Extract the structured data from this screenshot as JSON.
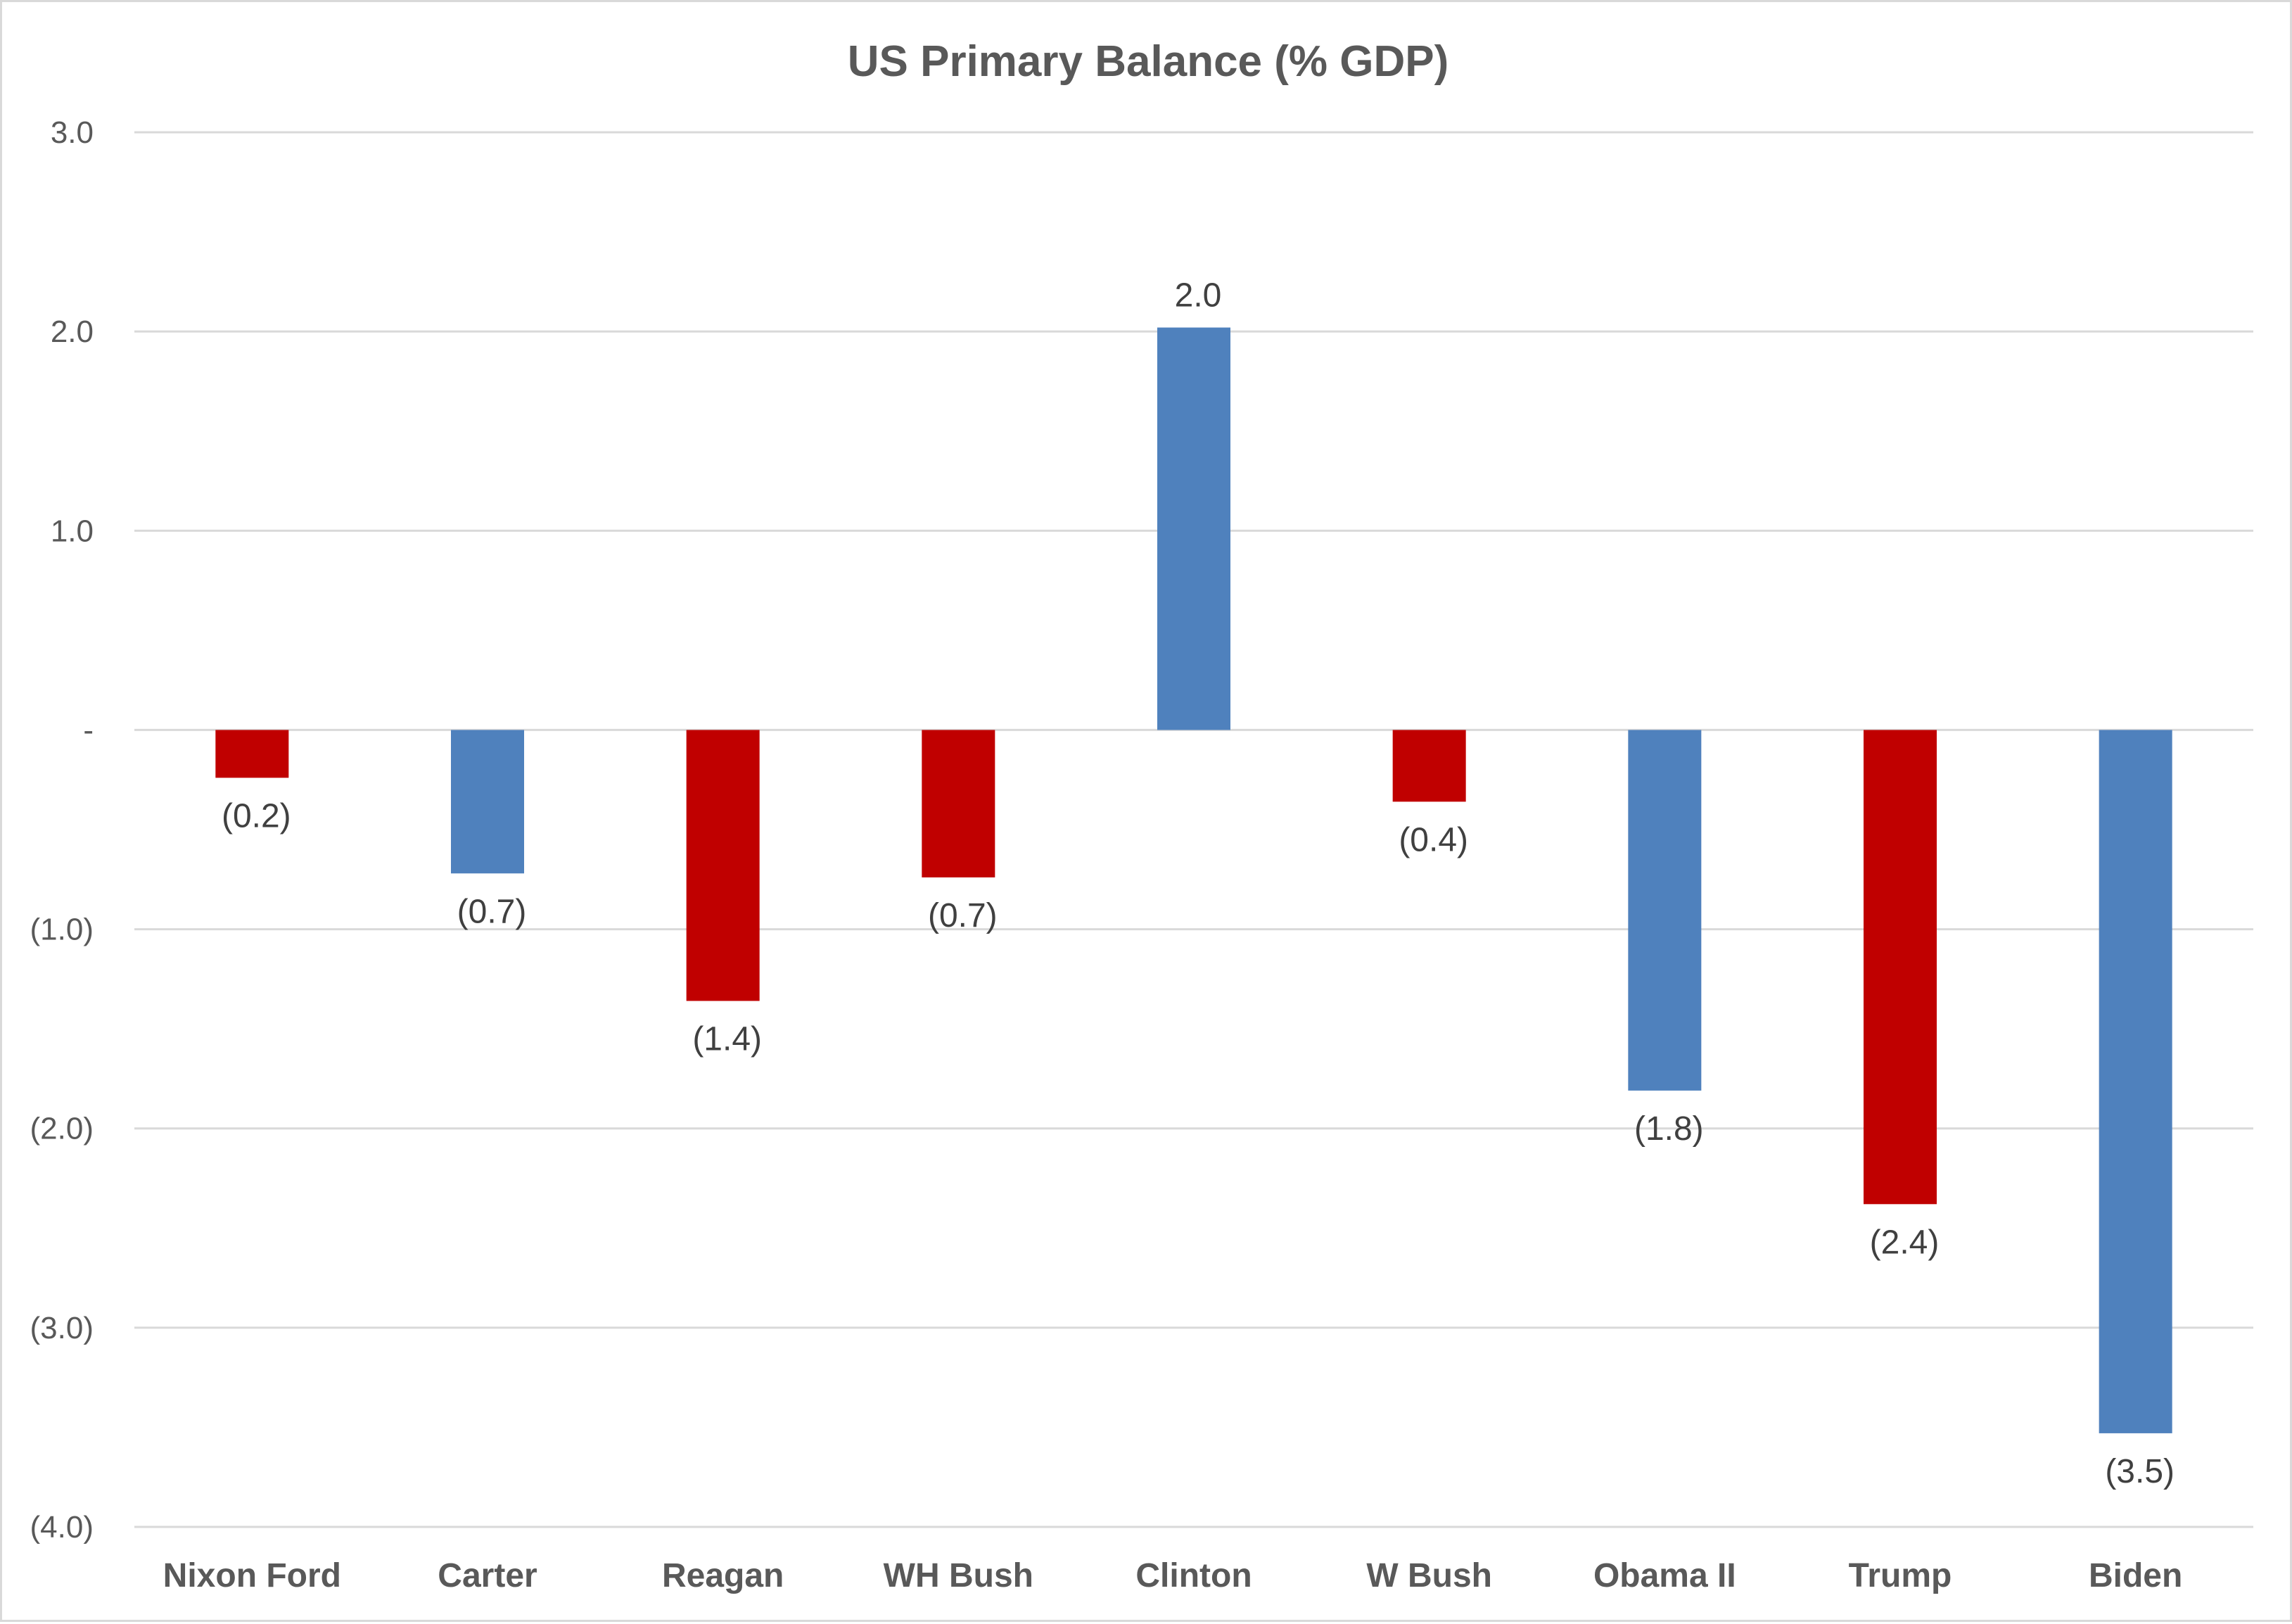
{
  "chart_data": {
    "type": "bar",
    "title": "US Primary Balance (% GDP)",
    "xlabel": "",
    "ylabel": "",
    "ylim": [
      -4.0,
      3.0
    ],
    "yticks": [
      3.0,
      2.0,
      1.0,
      0.0,
      -1.0,
      -2.0,
      -3.0,
      -4.0
    ],
    "ytick_labels": [
      "3.0",
      "2.0",
      "1.0",
      "-",
      "(1.0)",
      "(2.0)",
      "(3.0)",
      "(4.0)"
    ],
    "grid": true,
    "legend": "none",
    "categories": [
      "Nixon Ford",
      "Carter",
      "Reagan",
      "WH Bush",
      "Clinton",
      "W Bush",
      "Obama II",
      "Trump",
      "Biden"
    ],
    "values": [
      -0.24,
      -0.72,
      -1.36,
      -0.74,
      2.02,
      -0.36,
      -1.81,
      -2.38,
      -3.53
    ],
    "data_labels": [
      "(0.2)",
      "(0.7)",
      "(1.4)",
      "(0.7)",
      "2.0",
      "(0.4)",
      "(1.8)",
      "(2.4)",
      "(3.5)"
    ],
    "party": [
      "R",
      "D",
      "R",
      "R",
      "D",
      "R",
      "D",
      "R",
      "D"
    ],
    "colors": {
      "R": "#c00000",
      "D": "#4f81bd",
      "grid": "#d9d9d9",
      "text": "#595959",
      "label": "#404040"
    }
  }
}
